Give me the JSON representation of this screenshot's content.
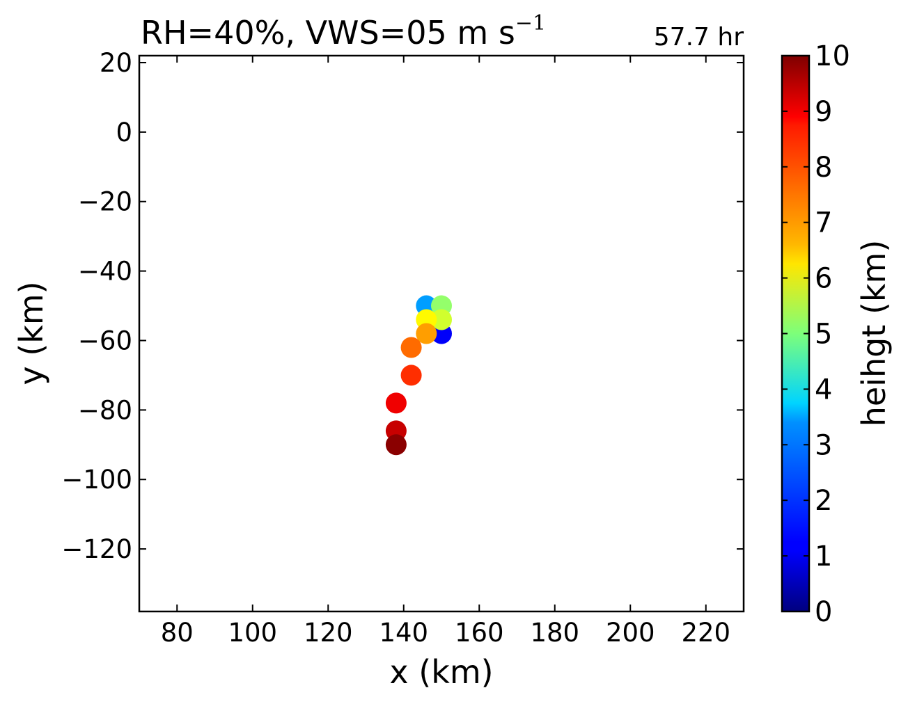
{
  "chart_data": {
    "type": "scatter",
    "title_main": "RH=40%, VWS=05 m s",
    "title_sup": "−1",
    "time_label": "57.7 hr",
    "time_label_color": "#0000ff",
    "xlabel": "x (km)",
    "ylabel": "y (km)",
    "xlim": [
      70,
      230
    ],
    "ylim": [
      -138,
      22
    ],
    "xticks": [
      80,
      100,
      120,
      140,
      160,
      180,
      200,
      220
    ],
    "xtick_labels": [
      "80",
      "100",
      "120",
      "140",
      "160",
      "180",
      "200",
      "220"
    ],
    "yticks": [
      20,
      0,
      -20,
      -40,
      -60,
      -80,
      -100,
      -120
    ],
    "ytick_labels": [
      "20",
      "0",
      "−20",
      "−40",
      "−60",
      "−80",
      "−100",
      "−120"
    ],
    "grid": false,
    "colormap": "jet",
    "colorbar": {
      "label": "heihgt (km)",
      "range": [
        0,
        10
      ],
      "ticks": [
        0,
        1,
        2,
        3,
        4,
        5,
        6,
        7,
        8,
        9,
        10
      ],
      "tick_labels": [
        "0",
        "1",
        "2",
        "3",
        "4",
        "5",
        "6",
        "7",
        "8",
        "9",
        "10"
      ]
    },
    "points": [
      {
        "x": 150,
        "y": -58,
        "height": 1.2
      },
      {
        "x": 146,
        "y": -50,
        "height": 2.8
      },
      {
        "x": 150,
        "y": -50,
        "height": 5.2
      },
      {
        "x": 150,
        "y": -54,
        "height": 5.8
      },
      {
        "x": 146,
        "y": -54,
        "height": 6.3
      },
      {
        "x": 146,
        "y": -58,
        "height": 7.2
      },
      {
        "x": 142,
        "y": -62,
        "height": 7.7
      },
      {
        "x": 142,
        "y": -70,
        "height": 8.3
      },
      {
        "x": 138,
        "y": -78,
        "height": 8.9
      },
      {
        "x": 138,
        "y": -86,
        "height": 9.3
      },
      {
        "x": 138,
        "y": -90,
        "height": 9.9
      }
    ]
  }
}
